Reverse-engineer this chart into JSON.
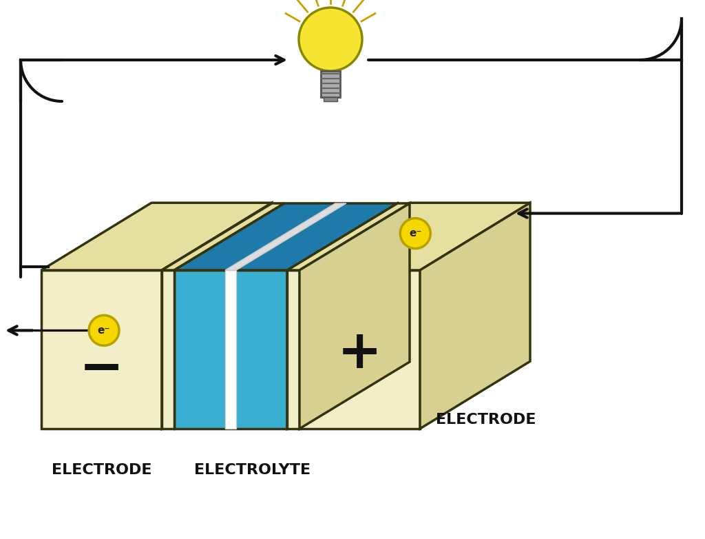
{
  "bg_color": "#ffffff",
  "cream_face": "#F2EEC8",
  "cream_top": "#E5DFA0",
  "cream_side": "#D8D090",
  "blue_front": "#3AAED0",
  "blue_top": "#1E7AA8",
  "blue_side": "#2890C0",
  "blue_back": "#1A6890",
  "white_sep": "#FFFFFF",
  "edge_color": "#333310",
  "electron_fill": "#F5D800",
  "electron_edge": "#B8A000",
  "arrow_color": "#111111",
  "text_color": "#111111",
  "label_electrode_left": "ELECTRODE",
  "label_electrode_right": "ELECTRODE",
  "label_electrolyte": "ELECTROLYTE",
  "label_minus": "−",
  "label_plus": "+",
  "label_electron": "e⁻"
}
